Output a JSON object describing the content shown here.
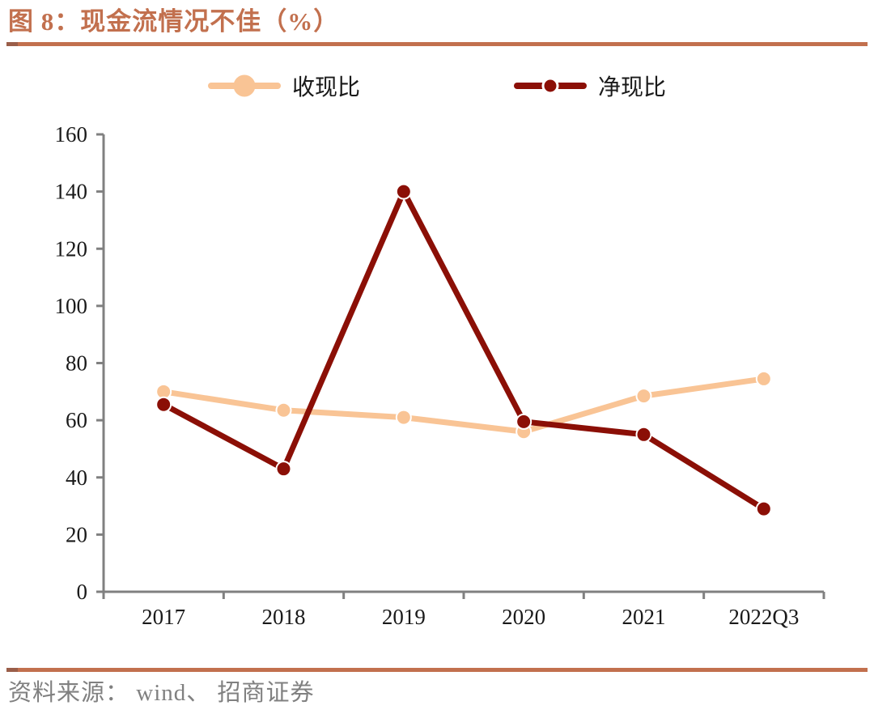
{
  "page": {
    "title": "图 8：现金流情况不佳（%）",
    "source_label": "资料来源： wind、 招商证券"
  },
  "colors": {
    "accent_rule": "#C2704E",
    "title_text": "#C2704E",
    "axis": "#808080",
    "tick_text": "#1A1A1A",
    "source_text": "#808080",
    "series_shouxianbi": "#F9C495",
    "series_jingxianbi": "#8B0F06"
  },
  "chart_data": {
    "type": "line",
    "title": "图 8：现金流情况不佳（%）",
    "categories": [
      "2017",
      "2018",
      "2019",
      "2020",
      "2021",
      "2022Q3"
    ],
    "series": [
      {
        "name": "收现比",
        "color": "#F9C495",
        "marker": "circle",
        "values": [
          70,
          63.5,
          61,
          56,
          68.5,
          74.5
        ]
      },
      {
        "name": "净现比",
        "color": "#8B0F06",
        "marker": "circle",
        "values": [
          65.5,
          43,
          140,
          59.5,
          55,
          29
        ]
      }
    ],
    "ylim": [
      0,
      160
    ],
    "ytick_step": 20,
    "xlabel": "",
    "ylabel": "",
    "grid": false,
    "legend_position": "top-center"
  }
}
